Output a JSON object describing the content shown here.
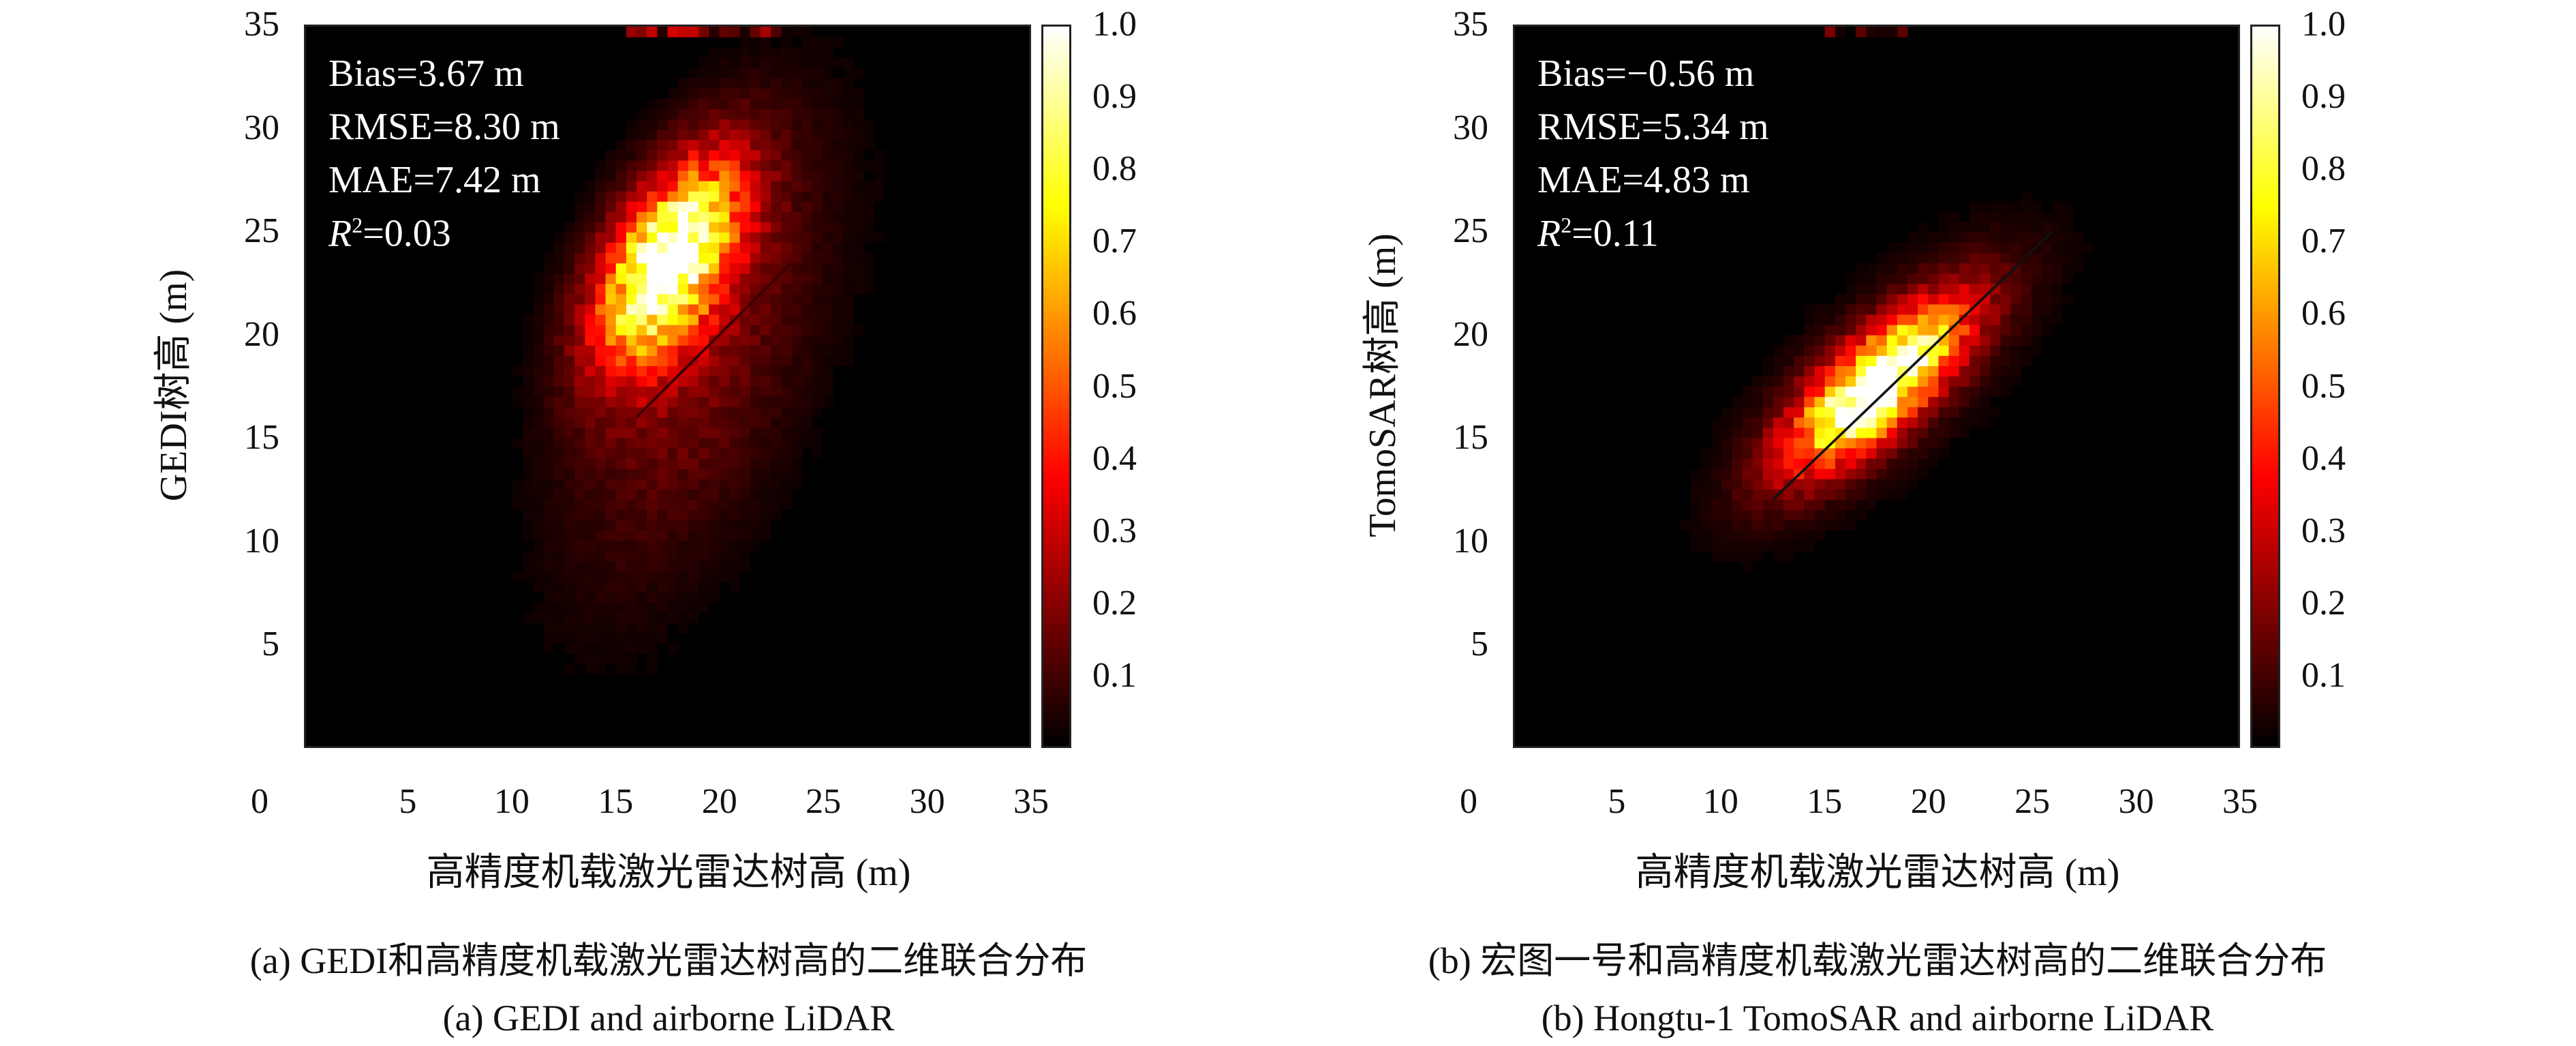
{
  "chart_data": [
    {
      "type": "heatmap",
      "xlabel": "高精度机载激光雷达树高 (m)",
      "ylabel": "GEDI树高 (m)",
      "xlim": [
        0,
        35
      ],
      "ylim": [
        0,
        35
      ],
      "xticks": [
        "0",
        "5",
        "10",
        "15",
        "20",
        "25",
        "30",
        "35"
      ],
      "yticks": [
        "5",
        "10",
        "15",
        "20",
        "25",
        "30",
        "35"
      ],
      "colorbar": {
        "range": [
          0,
          1
        ],
        "ticks": [
          "0.1",
          "0.2",
          "0.3",
          "0.4",
          "0.5",
          "0.6",
          "0.7",
          "0.8",
          "0.9",
          "1.0"
        ],
        "colormap": "hot"
      },
      "stats": {
        "bias": "Bias=3.67 m",
        "rmse": "RMSE=8.30 m",
        "mae": "MAE=7.42 m",
        "r2_label": "R",
        "r2_value": "=0.03"
      },
      "density_model": {
        "bin_size": 0.5,
        "components": [
          {
            "cx": 17.5,
            "cy": 23.5,
            "sx": 2.4,
            "sy": 3.4,
            "rho": 0.55,
            "weight": 1.0
          },
          {
            "cx": 19,
            "cy": 19,
            "sx": 4.2,
            "sy": 7.5,
            "rho": 0.55,
            "weight": 0.17
          }
        ],
        "top_band": {
          "x_from": 15,
          "x_to": 23,
          "weight": 0.35
        }
      },
      "fit_line": {
        "x": [
          16,
          23.5
        ],
        "y": [
          16,
          23.5
        ],
        "color": "#3a0000"
      },
      "caption_cn": "(a) GEDI和高精度机载激光雷达树高的二维联合分布",
      "caption_en": "(a) GEDI and airborne LiDAR"
    },
    {
      "type": "heatmap",
      "xlabel": "高精度机载激光雷达树高 (m)",
      "ylabel": "TomoSAR树高 (m)",
      "xlim": [
        0,
        35
      ],
      "ylim": [
        0,
        35
      ],
      "xticks": [
        "0",
        "5",
        "10",
        "15",
        "20",
        "25",
        "30",
        "35"
      ],
      "yticks": [
        "5",
        "10",
        "15",
        "20",
        "25",
        "30",
        "35"
      ],
      "colorbar": {
        "range": [
          0,
          1
        ],
        "ticks": [
          "0.1",
          "0.2",
          "0.3",
          "0.4",
          "0.5",
          "0.6",
          "0.7",
          "0.8",
          "0.9",
          "1.0"
        ],
        "colormap": "hot"
      },
      "stats": {
        "bias": "Bias=−0.56 m",
        "rmse": "RMSE=5.34 m",
        "mae": "MAE=4.83 m",
        "r2_label": "R",
        "r2_value": "=0.11"
      },
      "density_model": {
        "bin_size": 0.5,
        "components": [
          {
            "cx": 17.5,
            "cy": 17.5,
            "sx": 2.8,
            "sy": 2.6,
            "rho": 0.75,
            "weight": 1.0
          },
          {
            "cx": 18,
            "cy": 18,
            "sx": 4.5,
            "sy": 4.2,
            "rho": 0.72,
            "weight": 0.16
          }
        ],
        "top_band": {
          "x_from": 15,
          "x_to": 19,
          "weight": 0.25
        }
      },
      "fit_line": {
        "x": [
          12.5,
          26
        ],
        "y": [
          12,
          25
        ],
        "color": "#111111"
      },
      "caption_cn": "(b) 宏图一号和高精度机载激光雷达树高的二维联合分布",
      "caption_en": "(b) Hongtu-1 TomoSAR and airborne LiDAR"
    }
  ]
}
